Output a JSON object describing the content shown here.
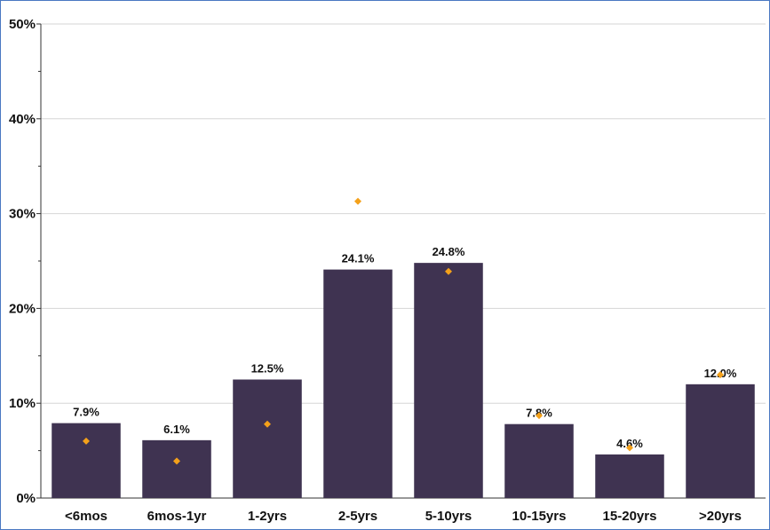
{
  "chart_data": {
    "type": "bar",
    "categories": [
      "<6mos",
      "6mos-1yr",
      "1-2yrs",
      "2-5yrs",
      "5-10yrs",
      "10-15yrs",
      "15-20yrs",
      ">20yrs"
    ],
    "series": [
      {
        "values": [
          7.9,
          6.1,
          12.5,
          24.1,
          24.8,
          7.8,
          4.6,
          12.0
        ],
        "data_labels": [
          "7.9%",
          "6.1%",
          "12.5%",
          "24.1%",
          "24.8%",
          "7.8%",
          "4.6%",
          "12.0%"
        ],
        "color": "#3f3351"
      },
      {
        "values": [
          6.0,
          3.9,
          7.8,
          31.3,
          23.9,
          8.7,
          5.3,
          13.0
        ],
        "color": "#f4a11a"
      }
    ],
    "yticks": [
      "0%",
      "10%",
      "20%",
      "30%",
      "40%",
      "50%"
    ],
    "ylim": [
      0,
      50
    ],
    "title": "",
    "xlabel": "",
    "ylabel": "",
    "grid": true
  }
}
